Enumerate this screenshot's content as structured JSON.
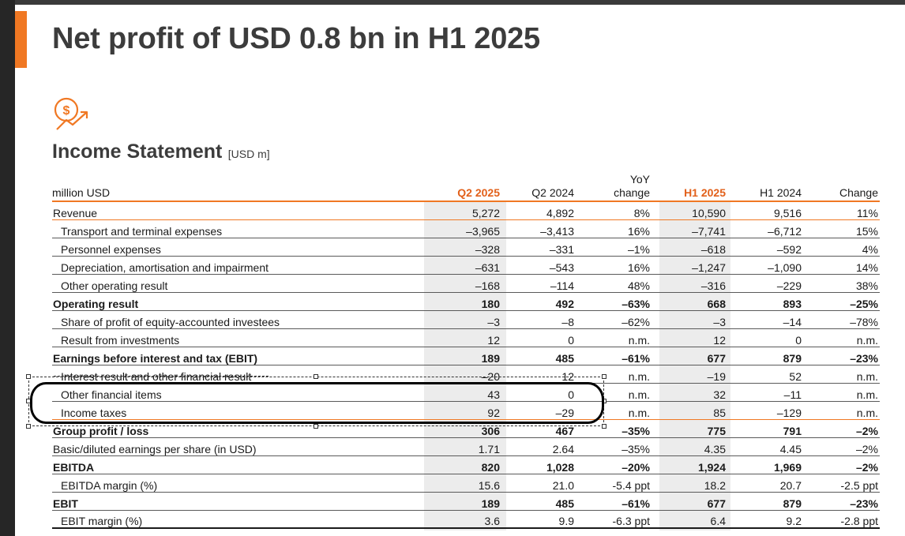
{
  "title": "Net profit of USD 0.8 bn in H1 2025",
  "subtitle": {
    "main": "Income Statement",
    "unit": "[USD m]"
  },
  "icon": "money-growth-icon",
  "colors": {
    "accent": "#f07823",
    "header_highlight": "#e2601a",
    "shade": "#ececec"
  },
  "table": {
    "headers": {
      "label": "million USD",
      "q2_2025": "Q2 2025",
      "q2_2024": "Q2 2024",
      "yoy_line1": "YoY",
      "yoy_line2": "change",
      "h1_2025": "H1 2025",
      "h1_2024": "H1 2024",
      "change": "Change"
    },
    "rows": [
      {
        "label": "Revenue",
        "q2_2025": "5,272",
        "q2_2024": "4,892",
        "yoy": "8%",
        "h1_2025": "10,590",
        "h1_2024": "9,516",
        "change": "11%"
      },
      {
        "label": "Transport and terminal expenses",
        "q2_2025": "–3,965",
        "q2_2024": "–3,413",
        "yoy": "16%",
        "h1_2025": "–7,741",
        "h1_2024": "–6,712",
        "change": "15%"
      },
      {
        "label": "Personnel expenses",
        "q2_2025": "–328",
        "q2_2024": "–331",
        "yoy": "–1%",
        "h1_2025": "–618",
        "h1_2024": "–592",
        "change": "4%"
      },
      {
        "label": "Depreciation, amortisation and impairment",
        "q2_2025": "–631",
        "q2_2024": "–543",
        "yoy": "16%",
        "h1_2025": "–1,247",
        "h1_2024": "–1,090",
        "change": "14%"
      },
      {
        "label": "Other operating result",
        "q2_2025": "–168",
        "q2_2024": "–114",
        "yoy": "48%",
        "h1_2025": "–316",
        "h1_2024": "–229",
        "change": "38%"
      },
      {
        "label": "Operating result",
        "q2_2025": "180",
        "q2_2024": "492",
        "yoy": "–63%",
        "h1_2025": "668",
        "h1_2024": "893",
        "change": "–25%"
      },
      {
        "label": "Share of profit of equity-accounted investees",
        "q2_2025": "–3",
        "q2_2024": "–8",
        "yoy": "–62%",
        "h1_2025": "–3",
        "h1_2024": "–14",
        "change": "–78%"
      },
      {
        "label": "Result from investments",
        "q2_2025": "12",
        "q2_2024": "0",
        "yoy": "n.m.",
        "h1_2025": "12",
        "h1_2024": "0",
        "change": "n.m."
      },
      {
        "label": "Earnings before interest and tax (EBIT)",
        "q2_2025": "189",
        "q2_2024": "485",
        "yoy": "–61%",
        "h1_2025": "677",
        "h1_2024": "879",
        "change": "–23%"
      },
      {
        "label": "Interest result and other financial result",
        "q2_2025": "–20",
        "q2_2024": "12",
        "yoy": "n.m.",
        "h1_2025": "–19",
        "h1_2024": "52",
        "change": "n.m."
      },
      {
        "label": "Other financial items",
        "q2_2025": "43",
        "q2_2024": "0",
        "yoy": "n.m.",
        "h1_2025": "32",
        "h1_2024": "–11",
        "change": "n.m."
      },
      {
        "label": "Income taxes",
        "q2_2025": "92",
        "q2_2024": "–29",
        "yoy": "n.m.",
        "h1_2025": "85",
        "h1_2024": "–129",
        "change": "n.m."
      },
      {
        "label": "Group profit / loss",
        "q2_2025": "306",
        "q2_2024": "467",
        "yoy": "–35%",
        "h1_2025": "775",
        "h1_2024": "791",
        "change": "–2%"
      },
      {
        "label": "Basic/diluted earnings per share (in USD)",
        "q2_2025": "1.71",
        "q2_2024": "2.64",
        "yoy": "–35%",
        "h1_2025": "4.35",
        "h1_2024": "4.45",
        "change": "–2%"
      },
      {
        "label": "EBITDA",
        "q2_2025": "820",
        "q2_2024": "1,028",
        "yoy": "–20%",
        "h1_2025": "1,924",
        "h1_2024": "1,969",
        "change": "–2%"
      },
      {
        "label": "EBITDA margin (%)",
        "q2_2025": "15.6",
        "q2_2024": "21.0",
        "yoy": "-5.4 ppt",
        "h1_2025": "18.2",
        "h1_2024": "20.7",
        "change": "-2.5 ppt"
      },
      {
        "label": "EBIT",
        "q2_2025": "189",
        "q2_2024": "485",
        "yoy": "–61%",
        "h1_2025": "677",
        "h1_2024": "879",
        "change": "–23%"
      },
      {
        "label": "EBIT margin (%)",
        "q2_2025": "3.6",
        "q2_2024": "9.9",
        "yoy": "-6.3 ppt",
        "h1_2025": "6.4",
        "h1_2024": "9.2",
        "change": "-2.8 ppt"
      }
    ]
  }
}
